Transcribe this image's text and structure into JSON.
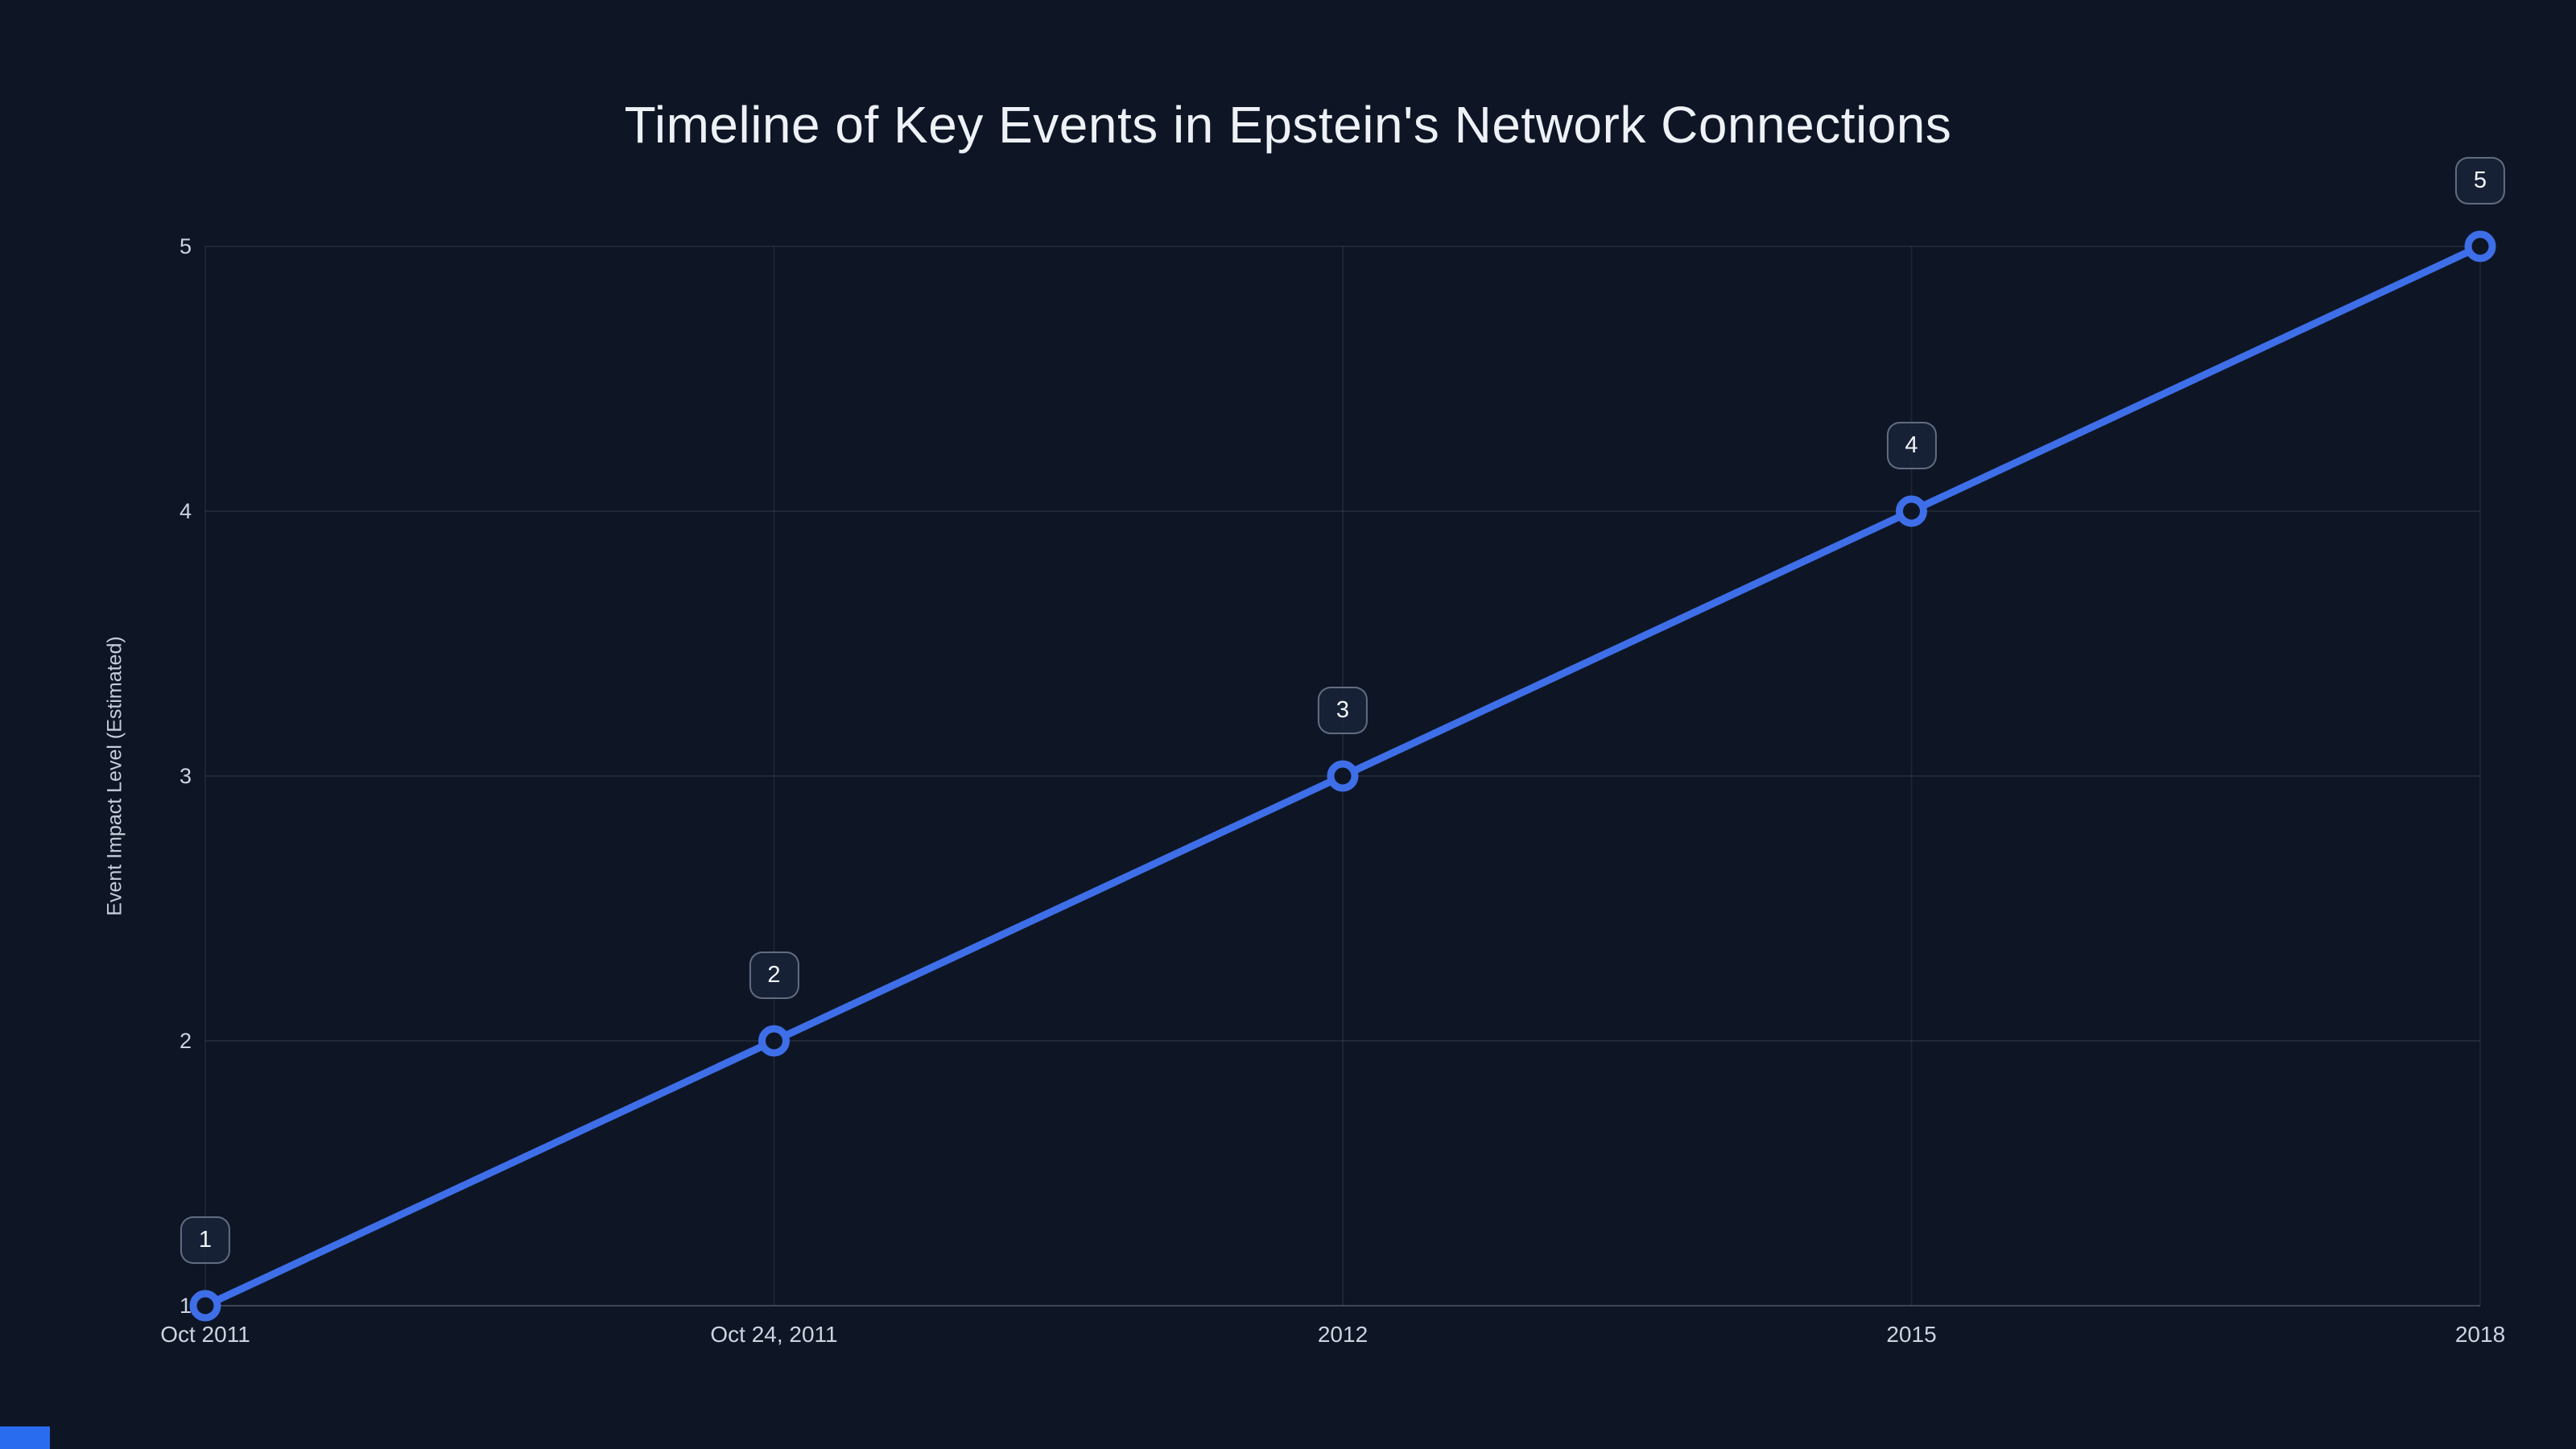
{
  "page": {
    "background": "#0e1626",
    "accent_blue": "#2a6cf0"
  },
  "chart_data": {
    "type": "line",
    "title": "Timeline of Key Events in Epstein's Network Connections",
    "xlabel": "",
    "ylabel": "Event Impact Level (Estimated)",
    "x_tick_labels": [
      "Oct 2011",
      "Oct 24, 2011",
      "2012",
      "2015",
      "2018"
    ],
    "y_ticks": [
      1,
      2,
      3,
      4,
      5
    ],
    "ylim": [
      1,
      5
    ],
    "grid": true,
    "legend_position": "none",
    "series": [
      {
        "name": "Event Impact Level (Estimated)",
        "x": [
          "Oct 2011",
          "Oct 24, 2011",
          "2012",
          "2015",
          "2018"
        ],
        "values": [
          1,
          2,
          3,
          4,
          5
        ],
        "color": "#3e6fe8",
        "marker_fill": "#0e1626",
        "point_labels": [
          "1",
          "2",
          "3",
          "4",
          "5"
        ]
      }
    ]
  }
}
